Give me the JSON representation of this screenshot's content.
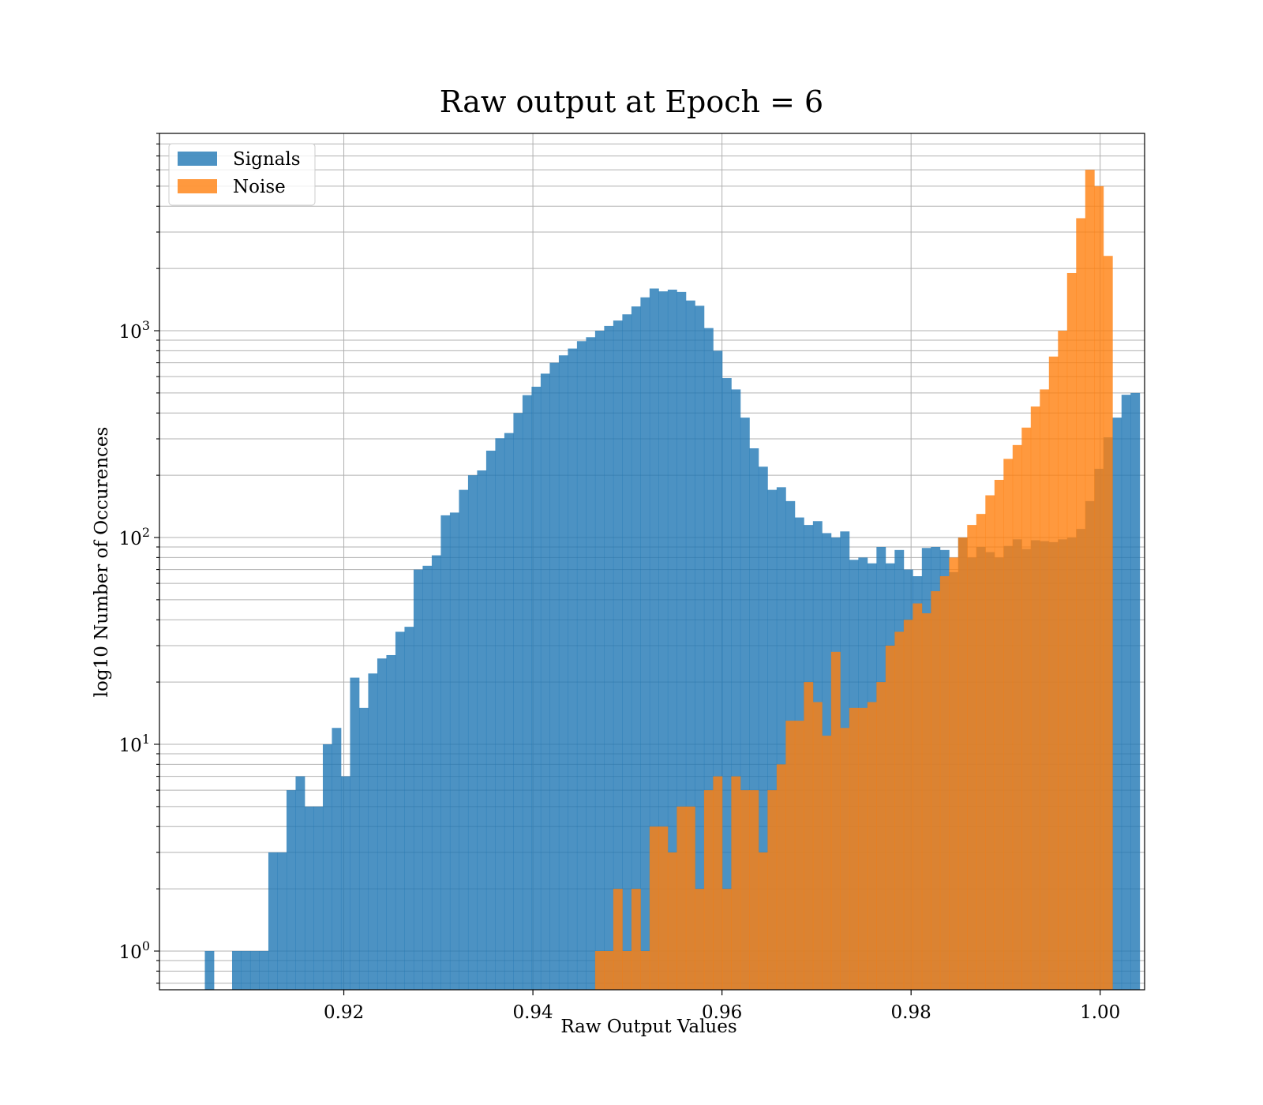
{
  "chart_data": {
    "type": "bar",
    "title": "Raw output at Epoch = 6",
    "xlabel": "Raw Output Values",
    "ylabel": "log10 Number of Occurences",
    "y_scale": "log",
    "xlim": [
      0.9005,
      1.0047
    ],
    "ylim": [
      0.65,
      9000
    ],
    "x_ticks": [
      0.92,
      0.94,
      0.96,
      0.98,
      1.0
    ],
    "x_tick_labels": [
      "0.92",
      "0.94",
      "0.96",
      "0.98",
      "1.00"
    ],
    "y_tick_mantissa": "10",
    "y_ticks": [
      1,
      10,
      100,
      1000
    ],
    "y_tick_exponents": [
      "0",
      "1",
      "2",
      "3"
    ],
    "grid": true,
    "legend": "top-left",
    "bin_start": 0.9005,
    "bin_width": 0.00096,
    "series": [
      {
        "name": "Signals",
        "color": "#1f77b4",
        "opacity": 0.8,
        "values": [
          0,
          0,
          0,
          0,
          0,
          1,
          0,
          0,
          1,
          1,
          1,
          1,
          3,
          3,
          6,
          7,
          5,
          5,
          10,
          12,
          7,
          21,
          15,
          22,
          26,
          27,
          35,
          37,
          70,
          73,
          82,
          128,
          132,
          170,
          200,
          211,
          263,
          302,
          320,
          400,
          488,
          536,
          620,
          700,
          760,
          820,
          890,
          930,
          1000,
          1055,
          1120,
          1200,
          1310,
          1450,
          1600,
          1550,
          1580,
          1540,
          1400,
          1320,
          1030,
          800,
          590,
          520,
          380,
          270,
          220,
          170,
          175,
          150,
          125,
          115,
          120,
          105,
          100,
          107,
          78,
          80,
          75,
          90,
          75,
          87,
          70,
          65,
          89,
          90,
          87,
          68,
          100,
          80,
          90,
          85,
          80,
          91,
          98,
          88,
          97,
          96,
          95,
          98,
          100,
          110,
          150,
          215,
          305,
          380,
          490,
          500
        ]
      },
      {
        "name": "Noise",
        "color": "#ff7f0e",
        "opacity": 0.8,
        "values": [
          0,
          0,
          0,
          0,
          0,
          0,
          0,
          0,
          0,
          0,
          0,
          0,
          0,
          0,
          0,
          0,
          0,
          0,
          0,
          0,
          0,
          0,
          0,
          0,
          0,
          0,
          0,
          0,
          0,
          0,
          0,
          0,
          0,
          0,
          0,
          0,
          0,
          0,
          0,
          0,
          0,
          0,
          0,
          0,
          0,
          0,
          0,
          0,
          1,
          1,
          2,
          1,
          2,
          1,
          4,
          4,
          3,
          5,
          5,
          2,
          6,
          7,
          2,
          7,
          6,
          6,
          3,
          6,
          8,
          13,
          13,
          20,
          16,
          11,
          28,
          12,
          15,
          15,
          16,
          20,
          30,
          35,
          40,
          48,
          43,
          55,
          65,
          80,
          100,
          115,
          130,
          160,
          190,
          240,
          280,
          340,
          430,
          520,
          750,
          1000,
          1900,
          3500,
          6000,
          5000,
          2300
        ]
      }
    ]
  }
}
